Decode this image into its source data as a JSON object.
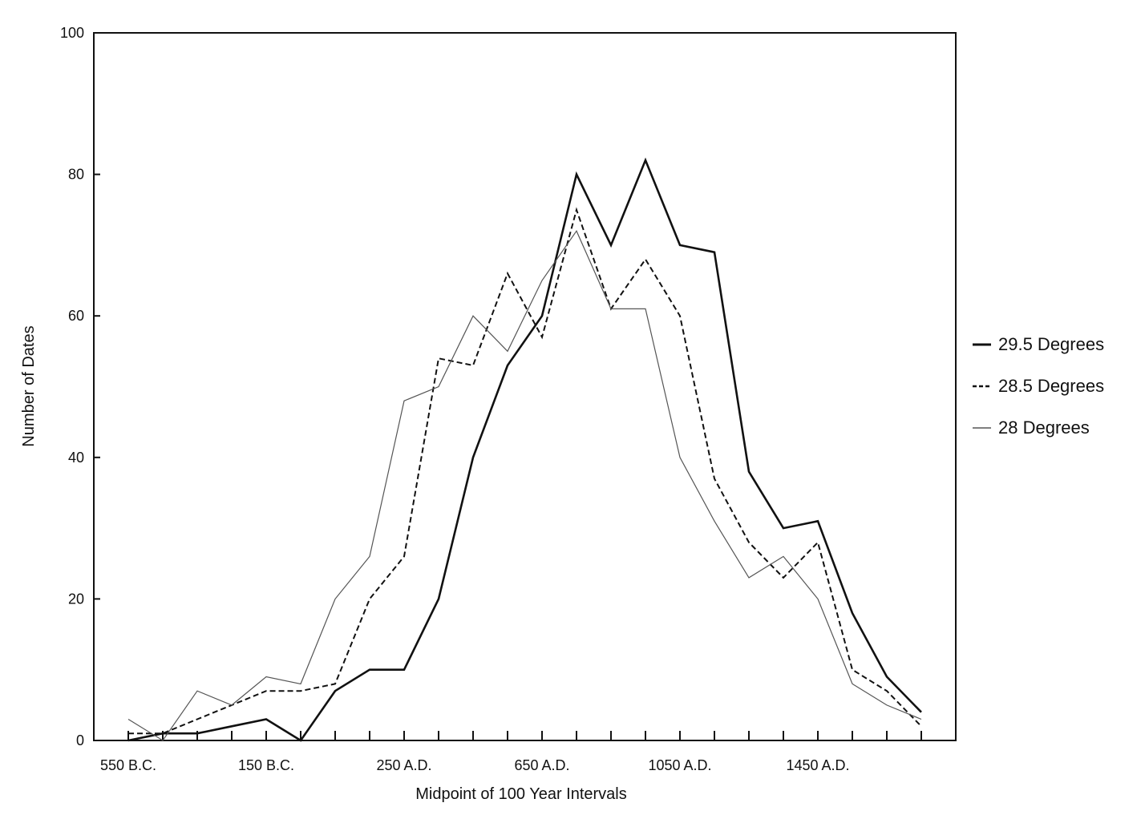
{
  "chart_data": {
    "type": "line",
    "xlabel": "Midpoint of 100 Year Intervals",
    "ylabel": "Number of Dates",
    "ylim": [
      0,
      100
    ],
    "xlim": [
      -650,
      1850
    ],
    "x_tick_labels": [
      {
        "x": -550,
        "label": "550 B.C."
      },
      {
        "x": -150,
        "label": "150 B.C."
      },
      {
        "x": 250,
        "label": "250 A.D."
      },
      {
        "x": 650,
        "label": "650 A.D."
      },
      {
        "x": 1050,
        "label": "1050 A.D."
      },
      {
        "x": 1450,
        "label": "1450 A.D."
      }
    ],
    "y_ticks": [
      0,
      20,
      40,
      60,
      80,
      100
    ],
    "grid": false,
    "legend_position": "right",
    "x": [
      -550,
      -450,
      -350,
      -250,
      -150,
      -50,
      50,
      150,
      250,
      350,
      450,
      550,
      650,
      750,
      850,
      950,
      1050,
      1150,
      1250,
      1350,
      1450,
      1550,
      1650,
      1750
    ],
    "series": [
      {
        "name": "29.5 Degrees",
        "style": "solid-bold",
        "values": [
          0,
          1,
          1,
          2,
          3,
          0,
          7,
          10,
          10,
          20,
          40,
          53,
          60,
          80,
          70,
          82,
          70,
          69,
          38,
          30,
          31,
          18,
          9,
          4
        ]
      },
      {
        "name": "28.5 Degrees",
        "style": "dashed",
        "values": [
          1,
          1,
          3,
          5,
          7,
          7,
          8,
          20,
          26,
          54,
          53,
          66,
          57,
          75,
          61,
          68,
          60,
          37,
          28,
          23,
          28,
          10,
          7,
          2
        ]
      },
      {
        "name": "28 Degrees",
        "style": "solid-thin",
        "values": [
          3,
          0,
          7,
          5,
          9,
          8,
          20,
          26,
          48,
          50,
          60,
          55,
          65,
          72,
          61,
          61,
          40,
          31,
          23,
          26,
          20,
          8,
          5,
          3
        ]
      }
    ]
  }
}
